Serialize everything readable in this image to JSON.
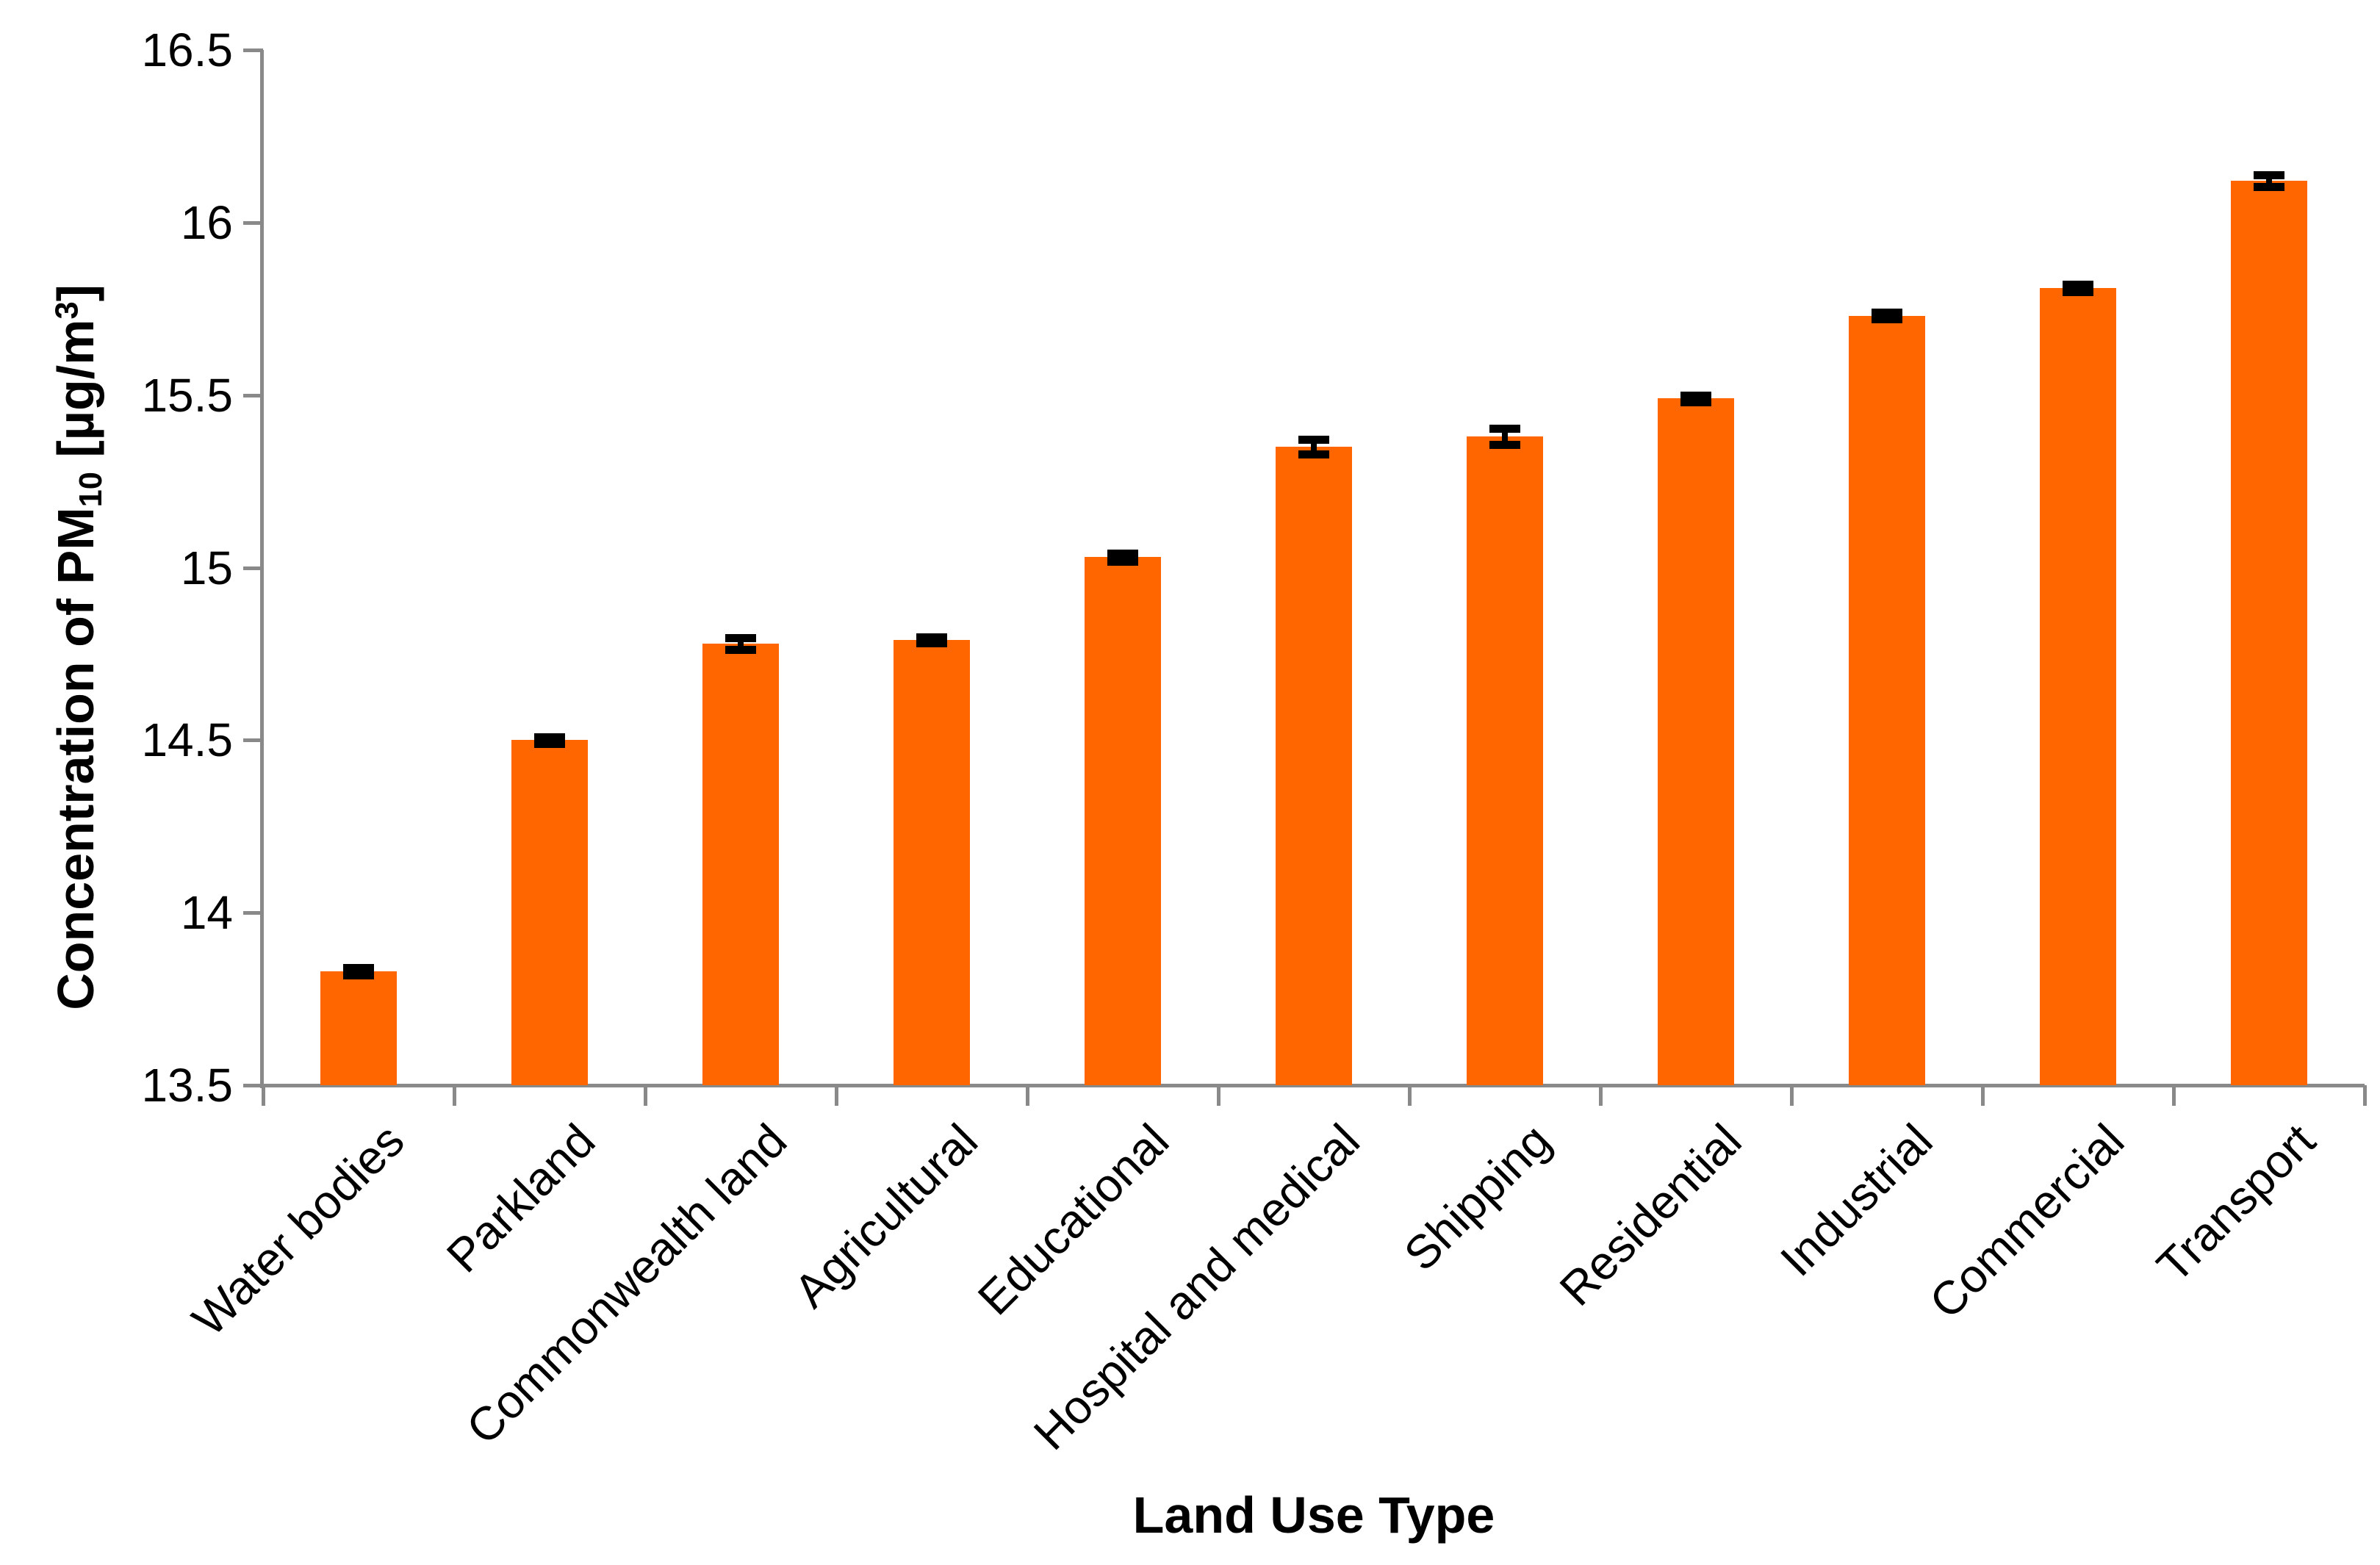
{
  "chart_data": {
    "type": "bar",
    "title": "",
    "categories": [
      "Water bodies",
      "Parkland",
      "Commonwealth land",
      "Agricultural",
      "Educational",
      "Hospital and medical",
      "Shipping",
      "Residential",
      "Industrial",
      "Commercial",
      "Transport"
    ],
    "values": [
      13.83,
      14.5,
      14.78,
      14.79,
      15.03,
      15.35,
      15.38,
      15.49,
      15.73,
      15.81,
      16.12
    ],
    "error_bars": [
      0.011,
      0.01,
      0.017,
      0.009,
      0.011,
      0.021,
      0.023,
      0.009,
      0.009,
      0.011,
      0.017
    ],
    "xlabel": "Land Use Type",
    "ylabel_parts": {
      "prefix": "Concentration of PM",
      "subscript": "10",
      "mid": " [µg/m",
      "superscript": "3",
      "suffix": "]"
    },
    "ylim": [
      13.5,
      16.5
    ],
    "ytick_step": 0.5,
    "ytick_labels": [
      "13.5",
      "14",
      "14.5",
      "15",
      "15.5",
      "16",
      "16.5"
    ],
    "grid": false,
    "legend": false,
    "bar_color": "#FF6600",
    "error_color": "#000000",
    "axis_color": "#898989",
    "text_color": "#000000"
  }
}
